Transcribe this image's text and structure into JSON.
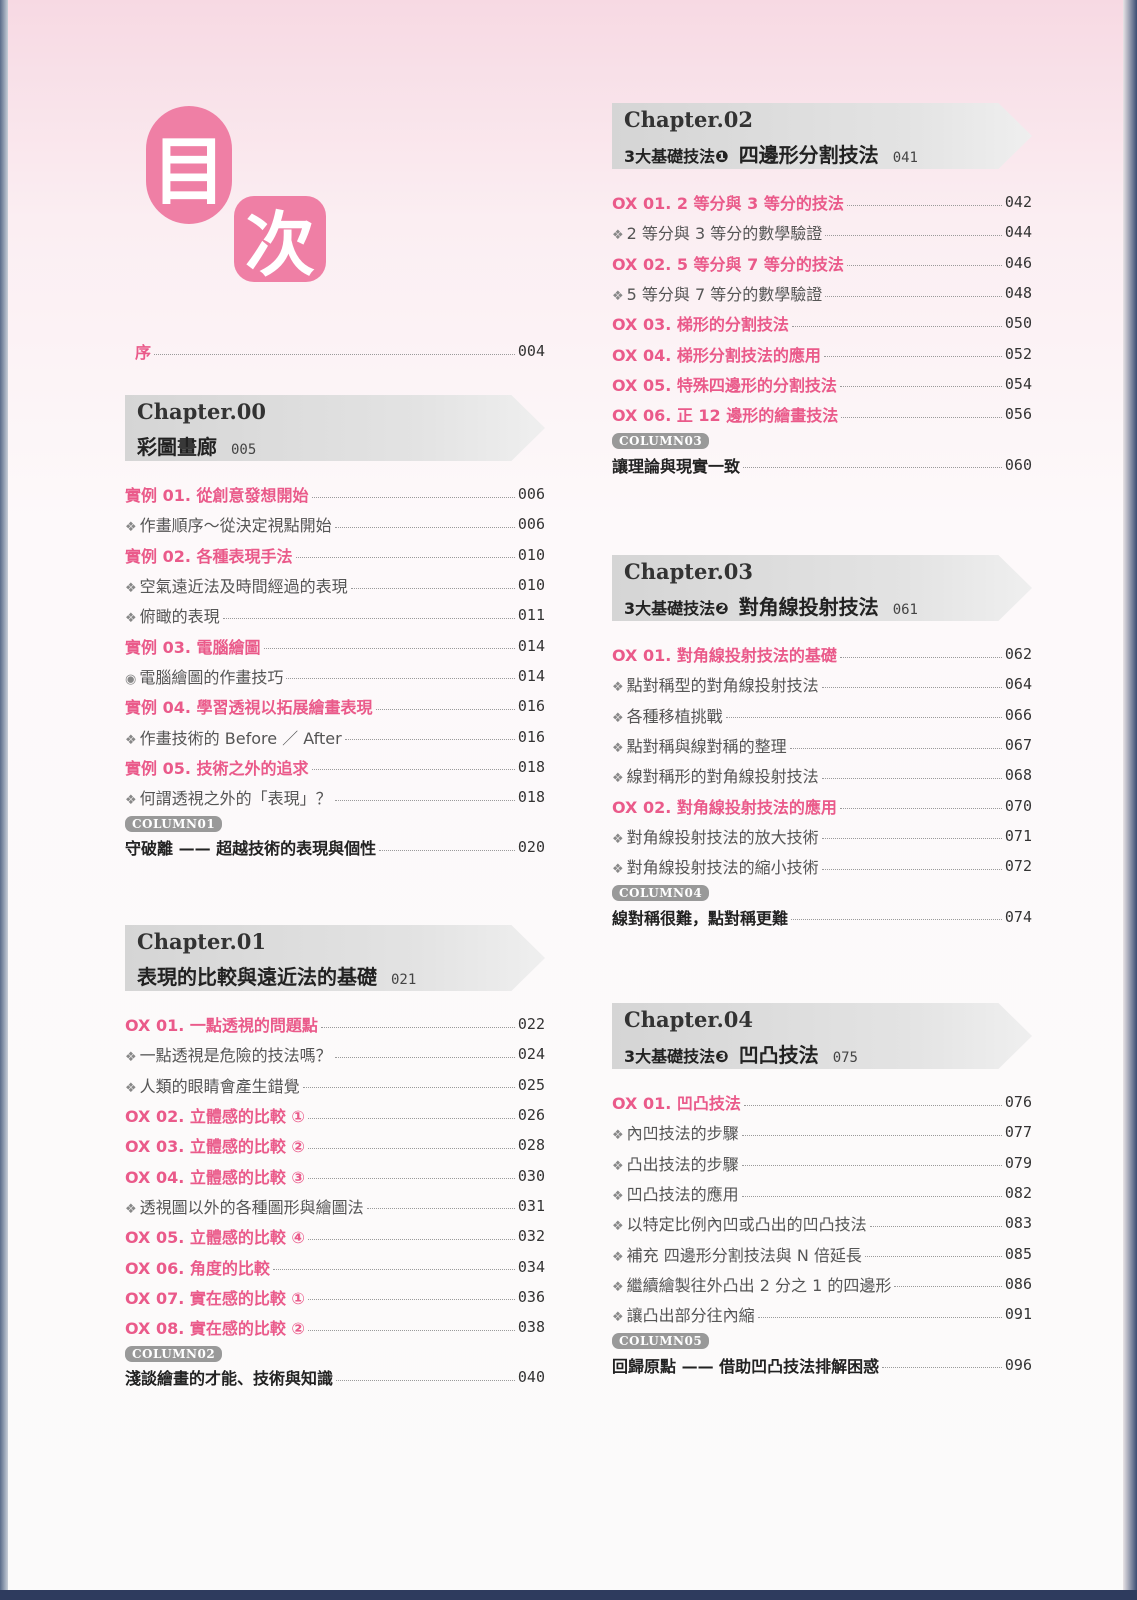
{
  "title": {
    "char1": "目",
    "char2": "次"
  },
  "preface": {
    "label": "序",
    "page": "004"
  },
  "chapters": [
    {
      "chapter": "Chapter.00",
      "prefix": "",
      "title": "彩圖畫廊",
      "page": "005",
      "items": [
        {
          "type": "main",
          "label": "實例 01. 從創意發想開始",
          "page": "006"
        },
        {
          "type": "sub",
          "marker": "❖",
          "label": "作畫順序～從決定視點開始",
          "page": "006"
        },
        {
          "type": "main",
          "label": "實例 02. 各種表現手法",
          "page": "010"
        },
        {
          "type": "sub",
          "marker": "❖",
          "label": "空氣遠近法及時間經過的表現",
          "page": "010"
        },
        {
          "type": "sub",
          "marker": "❖",
          "label": "俯瞰的表現",
          "page": "011"
        },
        {
          "type": "main",
          "label": "實例 03. 電腦繪圖",
          "page": "014"
        },
        {
          "type": "sub",
          "marker": "◉",
          "label": "電腦繪圖的作畫技巧",
          "page": "014"
        },
        {
          "type": "main",
          "label": "實例 04. 學習透視以拓展繪畫表現",
          "page": "016"
        },
        {
          "type": "sub",
          "marker": "❖",
          "label": "作畫技術的 Before ／ After",
          "page": "016"
        },
        {
          "type": "main",
          "label": "實例 05. 技術之外的追求",
          "page": "018"
        },
        {
          "type": "sub",
          "marker": "❖",
          "label": "何謂透視之外的「表現」？",
          "page": "018"
        }
      ],
      "column": {
        "badge": "COLUMN01",
        "label": "守破離 —— 超越技術的表現與個性",
        "page": "020"
      }
    },
    {
      "chapter": "Chapter.01",
      "prefix": "",
      "title": "表現的比較與遠近法的基礎",
      "page": "021",
      "items": [
        {
          "type": "main",
          "label": "OX 01. 一點透視的問題點",
          "page": "022"
        },
        {
          "type": "sub",
          "marker": "❖",
          "label": "一點透視是危險的技法嗎？",
          "page": "024"
        },
        {
          "type": "sub",
          "marker": "❖",
          "label": "人類的眼睛會產生錯覺",
          "page": "025"
        },
        {
          "type": "main",
          "label": "OX 02. 立體感的比較 ①",
          "page": "026"
        },
        {
          "type": "main",
          "label": "OX 03. 立體感的比較 ②",
          "page": "028"
        },
        {
          "type": "main",
          "label": "OX 04. 立體感的比較 ③",
          "page": "030"
        },
        {
          "type": "sub",
          "marker": "❖",
          "label": "透視圖以外的各種圖形與繪圖法",
          "page": "031"
        },
        {
          "type": "main",
          "label": "OX 05. 立體感的比較 ④",
          "page": "032"
        },
        {
          "type": "main",
          "label": "OX 06. 角度的比較",
          "page": "034"
        },
        {
          "type": "main",
          "label": "OX 07. 實在感的比較 ①",
          "page": "036"
        },
        {
          "type": "main",
          "label": "OX 08. 實在感的比較 ②",
          "page": "038"
        }
      ],
      "column": {
        "badge": "COLUMN02",
        "label": "淺談繪畫的才能、技術與知識",
        "page": "040"
      }
    },
    {
      "chapter": "Chapter.02",
      "prefix": "3大基礎技法❶",
      "title": "四邊形分割技法",
      "page": "041",
      "items": [
        {
          "type": "main",
          "label": "OX 01. 2 等分與 3 等分的技法",
          "page": "042"
        },
        {
          "type": "sub",
          "marker": "❖",
          "label": "2 等分與 3 等分的數學驗證",
          "page": "044"
        },
        {
          "type": "main",
          "label": "OX 02. 5 等分與 7 等分的技法",
          "page": "046"
        },
        {
          "type": "sub",
          "marker": "❖",
          "label": "5 等分與 7 等分的數學驗證",
          "page": "048"
        },
        {
          "type": "main",
          "label": "OX 03. 梯形的分割技法",
          "page": "050"
        },
        {
          "type": "main",
          "label": "OX 04. 梯形分割技法的應用",
          "page": "052"
        },
        {
          "type": "main",
          "label": "OX 05. 特殊四邊形的分割技法",
          "page": "054"
        },
        {
          "type": "main",
          "label": "OX 06. 正 12 邊形的繪畫技法",
          "page": "056"
        }
      ],
      "column": {
        "badge": "COLUMN03",
        "label": "讓理論與現實一致",
        "page": "060"
      }
    },
    {
      "chapter": "Chapter.03",
      "prefix": "3大基礎技法❷",
      "title": "對角線投射技法",
      "page": "061",
      "items": [
        {
          "type": "main",
          "label": "OX 01. 對角線投射技法的基礎",
          "page": "062"
        },
        {
          "type": "sub",
          "marker": "❖",
          "label": "點對稱型的對角線投射技法",
          "page": "064"
        },
        {
          "type": "sub",
          "marker": "❖",
          "label": "各種移植挑戰",
          "page": "066"
        },
        {
          "type": "sub",
          "marker": "❖",
          "label": "點對稱與線對稱的整理",
          "page": "067"
        },
        {
          "type": "sub",
          "marker": "❖",
          "label": "線對稱形的對角線投射技法",
          "page": "068"
        },
        {
          "type": "main",
          "label": "OX 02. 對角線投射技法的應用",
          "page": "070"
        },
        {
          "type": "sub",
          "marker": "❖",
          "label": "對角線投射技法的放大技術",
          "page": "071"
        },
        {
          "type": "sub",
          "marker": "❖",
          "label": "對角線投射技法的縮小技術",
          "page": "072"
        }
      ],
      "column": {
        "badge": "COLUMN04",
        "label": "線對稱很難，點對稱更難",
        "page": "074"
      }
    },
    {
      "chapter": "Chapter.04",
      "prefix": "3大基礎技法❸",
      "title": "凹凸技法",
      "page": "075",
      "items": [
        {
          "type": "main",
          "label": "OX 01. 凹凸技法",
          "page": "076"
        },
        {
          "type": "sub",
          "marker": "❖",
          "label": "內凹技法的步驟",
          "page": "077"
        },
        {
          "type": "sub",
          "marker": "❖",
          "label": "凸出技法的步驟",
          "page": "079"
        },
        {
          "type": "sub",
          "marker": "❖",
          "label": "凹凸技法的應用",
          "page": "082"
        },
        {
          "type": "sub",
          "marker": "❖",
          "label": "以特定比例內凹或凸出的凹凸技法",
          "page": "083"
        },
        {
          "type": "sub",
          "marker": "❖",
          "label": "補充 四邊形分割技法與 N 倍延長",
          "page": "085"
        },
        {
          "type": "sub",
          "marker": "❖",
          "label": "繼續繪製往外凸出 2 分之 1 的四邊形",
          "page": "086"
        },
        {
          "type": "sub",
          "marker": "❖",
          "label": "讓凸出部分往內縮",
          "page": "091"
        }
      ],
      "column": {
        "badge": "COLUMN05",
        "label": "回歸原點 —— 借助凹凸技法排解困惑",
        "page": "096"
      }
    }
  ],
  "colors": {
    "accent_pink": "#ea5a8a",
    "title_pink": "#ef7fa5",
    "banner_gray": "#d5d5d5"
  }
}
